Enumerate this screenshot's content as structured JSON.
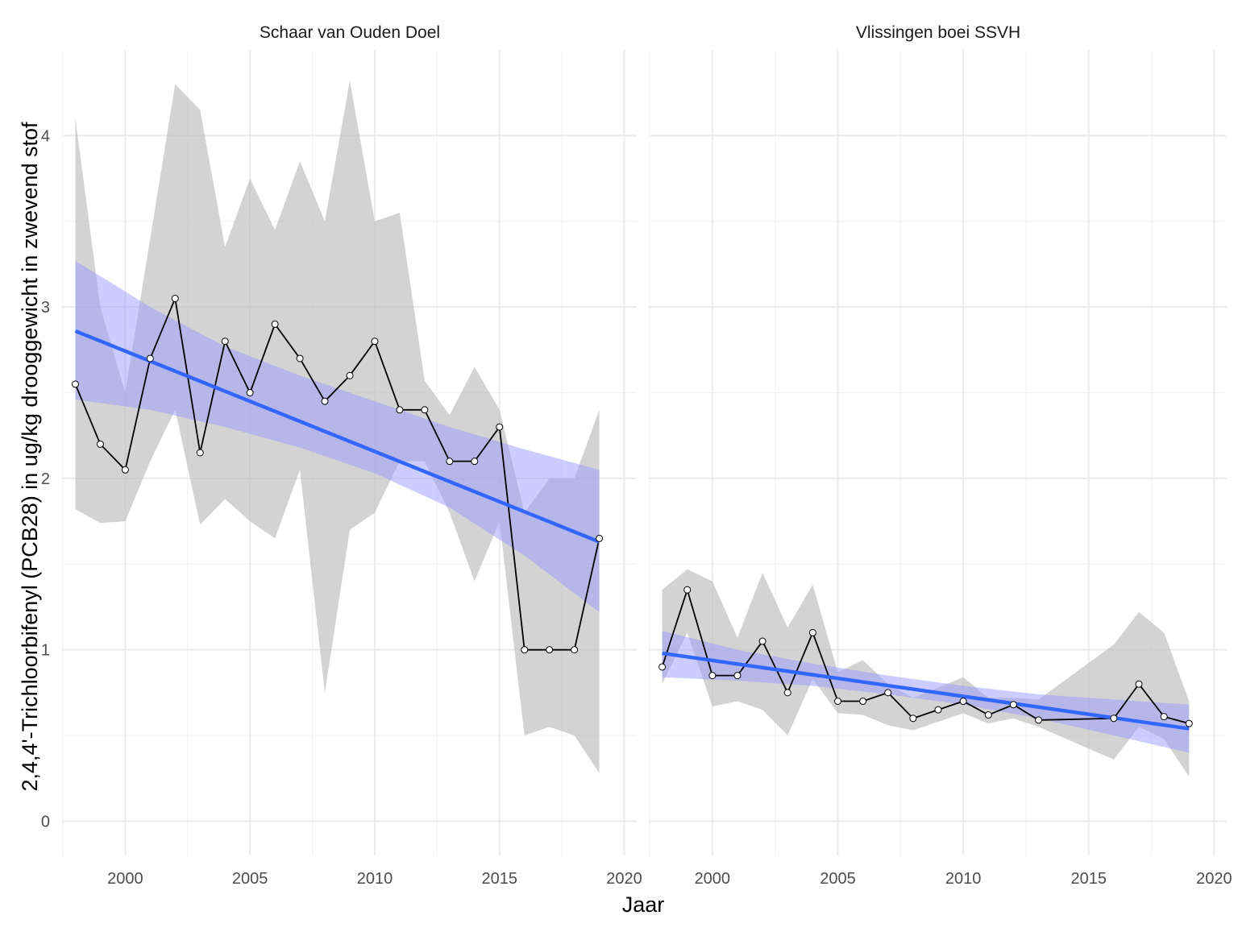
{
  "chart_data": {
    "type": "line",
    "xlabel": "Jaar",
    "ylabel": "2,4,4'-Trichloorbifenyl (PCB28) in ug/kg drooggewicht in zwevend stof",
    "xlim": [
      1997.5,
      2020.5
    ],
    "ylim": [
      -0.2,
      4.5
    ],
    "x_ticks": [
      2000,
      2005,
      2010,
      2015,
      2020
    ],
    "y_ticks": [
      0,
      1,
      2,
      3,
      4
    ],
    "grid": true,
    "legend": "none",
    "colors": {
      "series_line": "#000000",
      "point_fill": "#ffffff",
      "range_band": "#bebebe",
      "trend_line": "#3366ff",
      "trend_band": "#9999ff",
      "grid": "#ebebeb"
    },
    "panels": [
      {
        "title": "Schaar van Ouden Doel",
        "years": [
          1998,
          1999,
          2000,
          2001,
          2002,
          2003,
          2004,
          2005,
          2006,
          2007,
          2008,
          2009,
          2010,
          2011,
          2012,
          2013,
          2014,
          2015,
          2016,
          2017,
          2018,
          2019
        ],
        "values": [
          2.55,
          2.2,
          2.05,
          2.7,
          3.05,
          2.15,
          2.8,
          2.5,
          2.9,
          2.7,
          2.45,
          2.6,
          2.8,
          2.4,
          2.4,
          2.1,
          2.1,
          2.3,
          1.0,
          1.0,
          1.0,
          1.65
        ],
        "range_upper": [
          4.1,
          3.0,
          2.5,
          3.4,
          4.3,
          4.15,
          3.35,
          3.75,
          3.45,
          3.85,
          3.5,
          4.32,
          3.5,
          3.55,
          2.57,
          2.37,
          2.65,
          2.4,
          1.8,
          2.0,
          2.0,
          2.4
        ],
        "range_lower": [
          1.82,
          1.74,
          1.75,
          2.1,
          2.4,
          1.73,
          1.88,
          1.75,
          1.65,
          2.05,
          0.75,
          1.7,
          1.8,
          2.1,
          2.1,
          1.8,
          1.4,
          1.75,
          0.5,
          0.55,
          0.5,
          0.28
        ],
        "trend": {
          "x": [
            1998,
            2019
          ],
          "y": [
            2.86,
            1.63
          ]
        },
        "trend_band_upper": [
          3.27,
          3.0,
          2.77,
          2.6,
          2.45,
          2.3,
          2.17,
          2.05
        ],
        "trend_band_lower": [
          2.46,
          2.4,
          2.3,
          2.18,
          2.03,
          1.83,
          1.55,
          1.22
        ],
        "trend_band_x": [
          1998,
          2001,
          2004,
          2007,
          2010,
          2013,
          2016,
          2019
        ]
      },
      {
        "title": "Vlissingen boei SSVH",
        "years": [
          1998,
          1999,
          2000,
          2001,
          2002,
          2003,
          2004,
          2005,
          2006,
          2007,
          2008,
          2009,
          2010,
          2011,
          2012,
          2013,
          2016,
          2017,
          2018,
          2019
        ],
        "values": [
          0.9,
          1.35,
          0.85,
          0.85,
          1.05,
          0.75,
          1.1,
          0.7,
          0.7,
          0.75,
          0.6,
          0.65,
          0.7,
          0.62,
          0.68,
          0.59,
          0.6,
          0.8,
          0.61,
          0.57
        ],
        "range_upper": [
          1.35,
          1.47,
          1.4,
          1.07,
          1.45,
          1.13,
          1.38,
          0.87,
          0.94,
          0.8,
          0.72,
          0.78,
          0.84,
          0.72,
          0.72,
          0.71,
          1.03,
          1.22,
          1.1,
          0.7
        ],
        "range_lower": [
          0.8,
          1.1,
          0.67,
          0.7,
          0.65,
          0.5,
          0.83,
          0.63,
          0.62,
          0.56,
          0.53,
          0.58,
          0.63,
          0.57,
          0.6,
          0.55,
          0.36,
          0.55,
          0.48,
          0.26
        ],
        "trend": {
          "x": [
            1998,
            2019
          ],
          "y": [
            0.98,
            0.54
          ]
        },
        "trend_band_upper": [
          1.11,
          1.0,
          0.92,
          0.85,
          0.79,
          0.74,
          0.71,
          0.68
        ],
        "trend_band_lower": [
          0.84,
          0.82,
          0.79,
          0.74,
          0.68,
          0.6,
          0.5,
          0.4
        ],
        "trend_band_x": [
          1998,
          2001,
          2004,
          2007,
          2010,
          2013,
          2016,
          2019
        ]
      }
    ]
  }
}
